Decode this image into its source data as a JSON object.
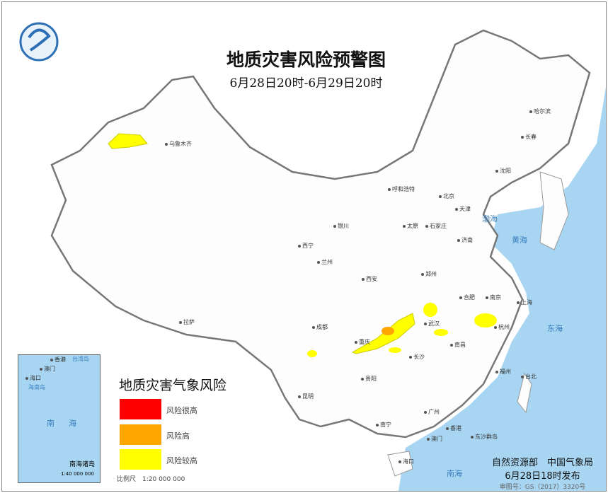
{
  "title": "地质灾害风险预警图",
  "subtitle": "6月28日20时-6月29日20时",
  "legend": {
    "title": "地质灾害气象风险",
    "items": [
      {
        "label": "风险很高",
        "color": "#ff0000"
      },
      {
        "label": "风险高",
        "color": "#ffa500"
      },
      {
        "label": "风险较高",
        "color": "#ffff00"
      }
    ],
    "scale": "比例尺　1:20 000 000"
  },
  "inset": {
    "labels": [
      "香港",
      "澳门",
      "台湾岛",
      "海口",
      "海南岛",
      "南海"
    ],
    "name": "南海诸岛",
    "scale": "1:40 000 000"
  },
  "cities": [
    "乌鲁木齐",
    "哈尔滨",
    "长春",
    "沈阳",
    "呼和浩特",
    "北京",
    "天津",
    "银川",
    "太原",
    "石家庄",
    "济南",
    "西宁",
    "兰州",
    "西安",
    "郑州",
    "合肥",
    "南京",
    "上海",
    "成都",
    "武汉",
    "杭州",
    "重庆",
    "长沙",
    "南昌",
    "福州",
    "拉萨",
    "贵阳",
    "昆明",
    "南宁",
    "广州",
    "台北",
    "香港",
    "澳门",
    "海口",
    "东沙群岛"
  ],
  "seas": [
    "渤海",
    "黄海",
    "东海",
    "南海"
  ],
  "publisher": {
    "org": "自然资源部　中国气象局",
    "time": "6月28日18时发布",
    "approval": "审图号：GS（2017）3320号"
  }
}
